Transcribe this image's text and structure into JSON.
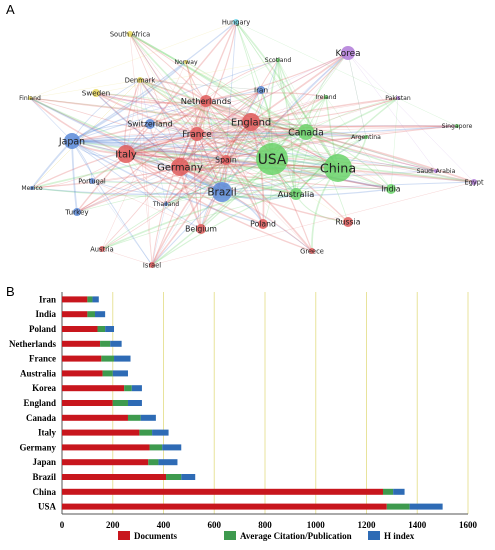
{
  "panel_a": {
    "label": "A",
    "nodes": [
      {
        "name": "Hungary",
        "color": "#6ad3e8",
        "size": 3
      },
      {
        "name": "South Africa",
        "color": "#e8d85a",
        "size": 3
      },
      {
        "name": "Norway",
        "color": "#e8d85a",
        "size": 2
      },
      {
        "name": "Scotland",
        "color": "#6ad36a",
        "size": 2
      },
      {
        "name": "Korea",
        "color": "#b07ad8",
        "size": 7
      },
      {
        "name": "Denmark",
        "color": "#e8d85a",
        "size": 3
      },
      {
        "name": "Iran",
        "color": "#5a8ad8",
        "size": 4
      },
      {
        "name": "Pakistan",
        "color": "#b07ad8",
        "size": 2
      },
      {
        "name": "Finland",
        "color": "#e8d85a",
        "size": 2
      },
      {
        "name": "Sweden",
        "color": "#e8d85a",
        "size": 4
      },
      {
        "name": "Netherlands",
        "color": "#e05a5a",
        "size": 6
      },
      {
        "name": "Ireland",
        "color": "#6ad36a",
        "size": 2
      },
      {
        "name": "England",
        "color": "#e05a5a",
        "size": 9
      },
      {
        "name": "Switzerland",
        "color": "#5a8ad8",
        "size": 5
      },
      {
        "name": "Canada",
        "color": "#6ad36a",
        "size": 8
      },
      {
        "name": "Singapore",
        "color": "#6ad36a",
        "size": 2
      },
      {
        "name": "Argentina",
        "color": "#6ad36a",
        "size": 2
      },
      {
        "name": "France",
        "color": "#e05a5a",
        "size": 7
      },
      {
        "name": "Japan",
        "color": "#5a8ad8",
        "size": 8
      },
      {
        "name": "Italy",
        "color": "#e05a5a",
        "size": 9
      },
      {
        "name": "USA",
        "color": "#6ad36a",
        "size": 16
      },
      {
        "name": "China",
        "color": "#6ad36a",
        "size": 14
      },
      {
        "name": "Spain",
        "color": "#e05a5a",
        "size": 5
      },
      {
        "name": "Germany",
        "color": "#e05a5a",
        "size": 9
      },
      {
        "name": "Saudi Arabia",
        "color": "#b07ad8",
        "size": 2
      },
      {
        "name": "Egypt",
        "color": "#b07ad8",
        "size": 3
      },
      {
        "name": "Mexico",
        "color": "#5a8ad8",
        "size": 2
      },
      {
        "name": "Portugal",
        "color": "#5a8ad8",
        "size": 3
      },
      {
        "name": "Brazil",
        "color": "#5a8ad8",
        "size": 10
      },
      {
        "name": "Australia",
        "color": "#6ad36a",
        "size": 6
      },
      {
        "name": "India",
        "color": "#6ad36a",
        "size": 5
      },
      {
        "name": "Thailand",
        "color": "#5a8ad8",
        "size": 2
      },
      {
        "name": "Turkey",
        "color": "#5a8ad8",
        "size": 4
      },
      {
        "name": "Poland",
        "color": "#e05a5a",
        "size": 5
      },
      {
        "name": "Russia",
        "color": "#e05a5a",
        "size": 5
      },
      {
        "name": "Belgium",
        "color": "#e05a5a",
        "size": 5
      },
      {
        "name": "Austria",
        "color": "#e05a5a",
        "size": 3
      },
      {
        "name": "Greece",
        "color": "#e05a5a",
        "size": 3
      },
      {
        "name": "Israel",
        "color": "#e05a5a",
        "size": 3
      }
    ]
  },
  "panel_b": {
    "label": "B",
    "chart_data": {
      "type": "bar",
      "orientation": "horizontal",
      "stacked": true,
      "categories": [
        "Iran",
        "India",
        "Poland",
        "Netherlands",
        "France",
        "Australia",
        "Korea",
        "England",
        "Canada",
        "Italy",
        "Germany",
        "Japan",
        "Brazil",
        "China",
        "USA"
      ],
      "series": [
        {
          "name": "Documents",
          "color": "#c8161d",
          "values": [
            100,
            100,
            140,
            150,
            155,
            160,
            245,
            200,
            260,
            305,
            345,
            340,
            410,
            1265,
            1280
          ]
        },
        {
          "name": "Average Citation/Publication",
          "color": "#3e9a4e",
          "values": [
            20,
            30,
            30,
            40,
            50,
            40,
            30,
            60,
            50,
            50,
            50,
            40,
            60,
            40,
            90
          ]
        },
        {
          "name": "H index",
          "color": "#2e6bb5",
          "values": [
            25,
            40,
            35,
            45,
            65,
            60,
            40,
            55,
            60,
            65,
            75,
            75,
            55,
            45,
            130
          ]
        }
      ],
      "xlim": [
        0,
        1600
      ],
      "xticks": [
        0,
        200,
        400,
        600,
        800,
        1000,
        1200,
        1400,
        1600
      ],
      "grid": "vertical",
      "legend_position": "bottom"
    }
  }
}
